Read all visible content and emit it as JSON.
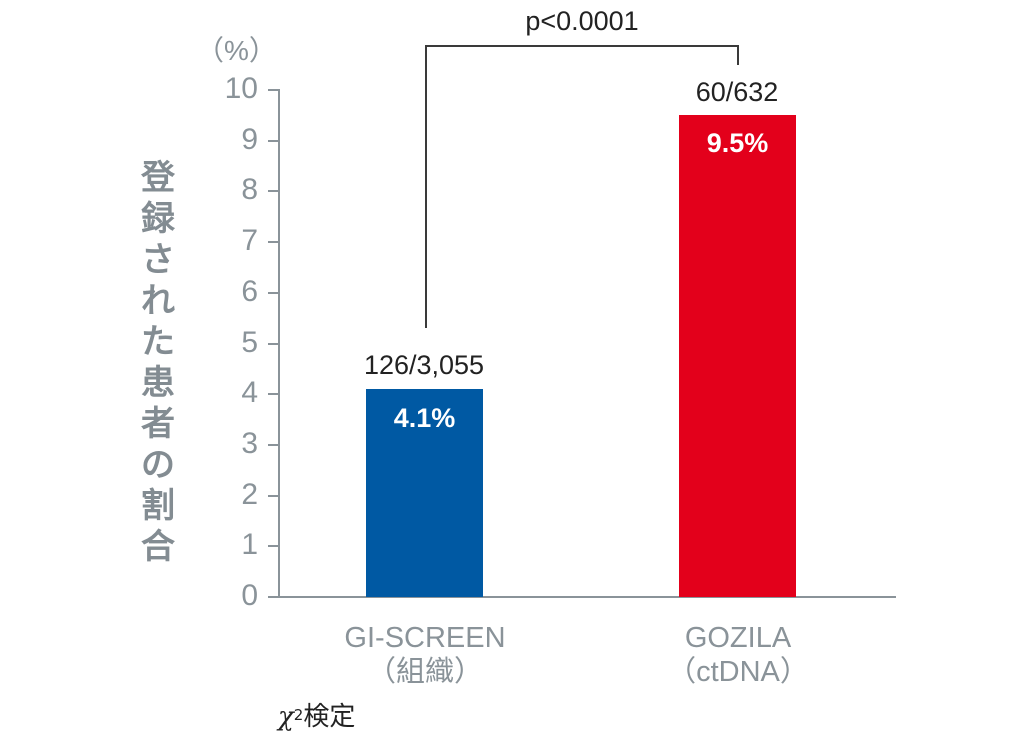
{
  "chart_data": {
    "type": "bar",
    "title": "",
    "xlabel": "",
    "ylabel": "登録された患者の割合",
    "y_unit": "（%）",
    "ylim": [
      0,
      10
    ],
    "yticks": [
      "0",
      "1",
      "2",
      "3",
      "4",
      "5",
      "6",
      "7",
      "8",
      "9",
      "10"
    ],
    "grid": false,
    "categories": [
      "GI-SCREEN（組織）",
      "GOZILA（ctDNA）"
    ],
    "series": [
      {
        "name": "登録された患者の割合",
        "values": [
          4.1,
          9.5
        ],
        "value_labels": [
          "4.1%",
          "9.5%"
        ],
        "count_labels": [
          "126/3,055",
          "60/632"
        ],
        "colors": [
          "#0059a3",
          "#e3001b"
        ]
      }
    ],
    "annotations": {
      "significance": "p<0.0001",
      "footnote_symbol": "χ",
      "footnote_sup": "2",
      "footnote_text": "検定"
    }
  },
  "axis": {
    "unit": "（%）",
    "ytick_labels": [
      "10",
      "9",
      "8",
      "7",
      "6",
      "5",
      "4",
      "3",
      "2",
      "1",
      "0"
    ],
    "ylabel_chars": [
      "登",
      "録",
      "さ",
      "れ",
      "た",
      "患",
      "者",
      "の",
      "割",
      "合"
    ]
  },
  "bars": [
    {
      "name_line1": "GI-SCREEN",
      "name_line2": "（組織）",
      "count": "126/3,055",
      "value": "4.1%",
      "color": "#0059a3"
    },
    {
      "name_line1": "GOZILA",
      "name_line2": "（ctDNA）",
      "count": "60/632",
      "value": "9.5%",
      "color": "#e3001b"
    }
  ],
  "significance": {
    "label": "p<0.0001"
  },
  "footnote": {
    "symbol": "χ",
    "sup": "2",
    "text": "検定"
  },
  "colors": {
    "axis": "#8a9399",
    "blue": "#0059a3",
    "red": "#e3001b",
    "bracket": "#3a3a3a"
  }
}
